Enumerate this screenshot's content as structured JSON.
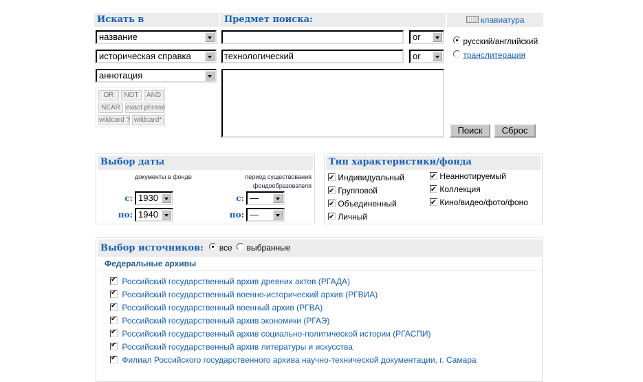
{
  "search": {
    "search_in_label": "Искать в",
    "subject_label": "Предмет поиска:",
    "keyboard_label": "клавиатура",
    "fields": [
      {
        "field": "название",
        "value": "",
        "op": "or"
      },
      {
        "field": "историческая справка",
        "value": "технологический",
        "op": "or"
      },
      {
        "field": "аннотация"
      }
    ],
    "operators": [
      "OR",
      "NOT",
      "AND",
      "NEAR",
      "exact phrase",
      "wildcard ?",
      "wildcard*"
    ],
    "lang_options": [
      {
        "label": "русский/английский",
        "selected": true
      },
      {
        "label": "транслитерация",
        "selected": false
      }
    ],
    "search_button": "Поиск",
    "reset_button": "Сброс"
  },
  "date": {
    "title": "Выбор даты",
    "col1": "документы в фонде",
    "col2a": "период существования",
    "col2b": "фондообразователя",
    "from": "с:",
    "to": "по:",
    "doc_from": "1930",
    "doc_to": "1940",
    "period_from": "—",
    "period_to": "—"
  },
  "types": {
    "title": "Тип характеристики/фонда",
    "items": [
      {
        "label": "Индивидуальный",
        "checked": true
      },
      {
        "label": "Групповой",
        "checked": true
      },
      {
        "label": "Объединенный",
        "checked": true
      },
      {
        "label": "Личный",
        "checked": true
      },
      {
        "label": "Неаннотируемый",
        "checked": true
      },
      {
        "label": "Коллекция",
        "checked": true
      },
      {
        "label": "Кино/видео/фото/фоно",
        "checked": true
      }
    ]
  },
  "sources": {
    "title": "Выбор источников:",
    "all": "все",
    "selected": "выбранные",
    "all_checked": true,
    "group": "Федеральные архивы",
    "items": [
      "Российский государственный архив древних актов (РГАДА)",
      "Российский государственный военно-исторический архив (РГВИА)",
      "Российский государственный военный архив (РГВА)",
      "Российский государственный архив экономики (РГАЭ)",
      "Российский государственный архив социально-политической истории (РГАСПИ)",
      "Российский государственный архив литературы и искусства",
      "Филиал Российского государственного архива научно-технической документации, г. Самара"
    ]
  }
}
